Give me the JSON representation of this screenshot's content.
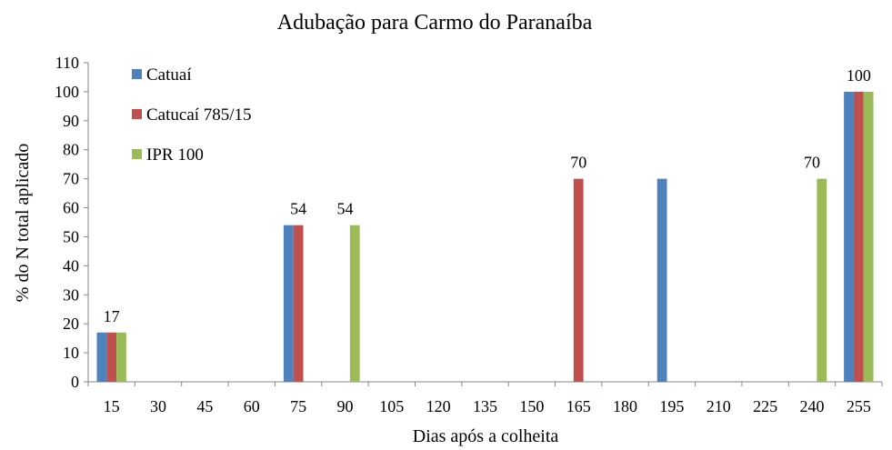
{
  "chart_data": {
    "type": "bar",
    "title": "Adubação para Carmo do Paranaíba",
    "xlabel": "Dias após a colheita",
    "ylabel": "% do N total aplicado",
    "categories": [
      "15",
      "30",
      "45",
      "60",
      "75",
      "90",
      "105",
      "120",
      "135",
      "150",
      "165",
      "180",
      "195",
      "210",
      "225",
      "240",
      "255"
    ],
    "ylim": [
      0,
      110
    ],
    "yticks": [
      "0",
      "10",
      "20",
      "30",
      "40",
      "50",
      "60",
      "70",
      "80",
      "90",
      "100",
      "110"
    ],
    "grid": false,
    "legend_position": "top-left",
    "series": [
      {
        "name": "Catuaí",
        "color": "#4F81BD",
        "values": [
          17,
          0,
          0,
          0,
          54,
          0,
          0,
          0,
          0,
          0,
          0,
          0,
          70,
          0,
          0,
          0,
          100
        ]
      },
      {
        "name": "Catucaí 785/15",
        "color": "#C0504D",
        "values": [
          17,
          0,
          0,
          0,
          54,
          0,
          0,
          0,
          0,
          0,
          70,
          0,
          0,
          0,
          0,
          0,
          100
        ]
      },
      {
        "name": "IPR 100",
        "color": "#9BBB59",
        "values": [
          17,
          0,
          0,
          0,
          0,
          54,
          0,
          0,
          0,
          0,
          0,
          0,
          0,
          0,
          0,
          70,
          100
        ]
      }
    ],
    "data_labels": [
      {
        "category": "15",
        "text": "17"
      },
      {
        "category": "75",
        "text": "54"
      },
      {
        "category": "90",
        "text": "54"
      },
      {
        "category": "165",
        "text": "70"
      },
      {
        "category": "240",
        "text": "70"
      },
      {
        "category": "255",
        "text": "100"
      }
    ]
  }
}
